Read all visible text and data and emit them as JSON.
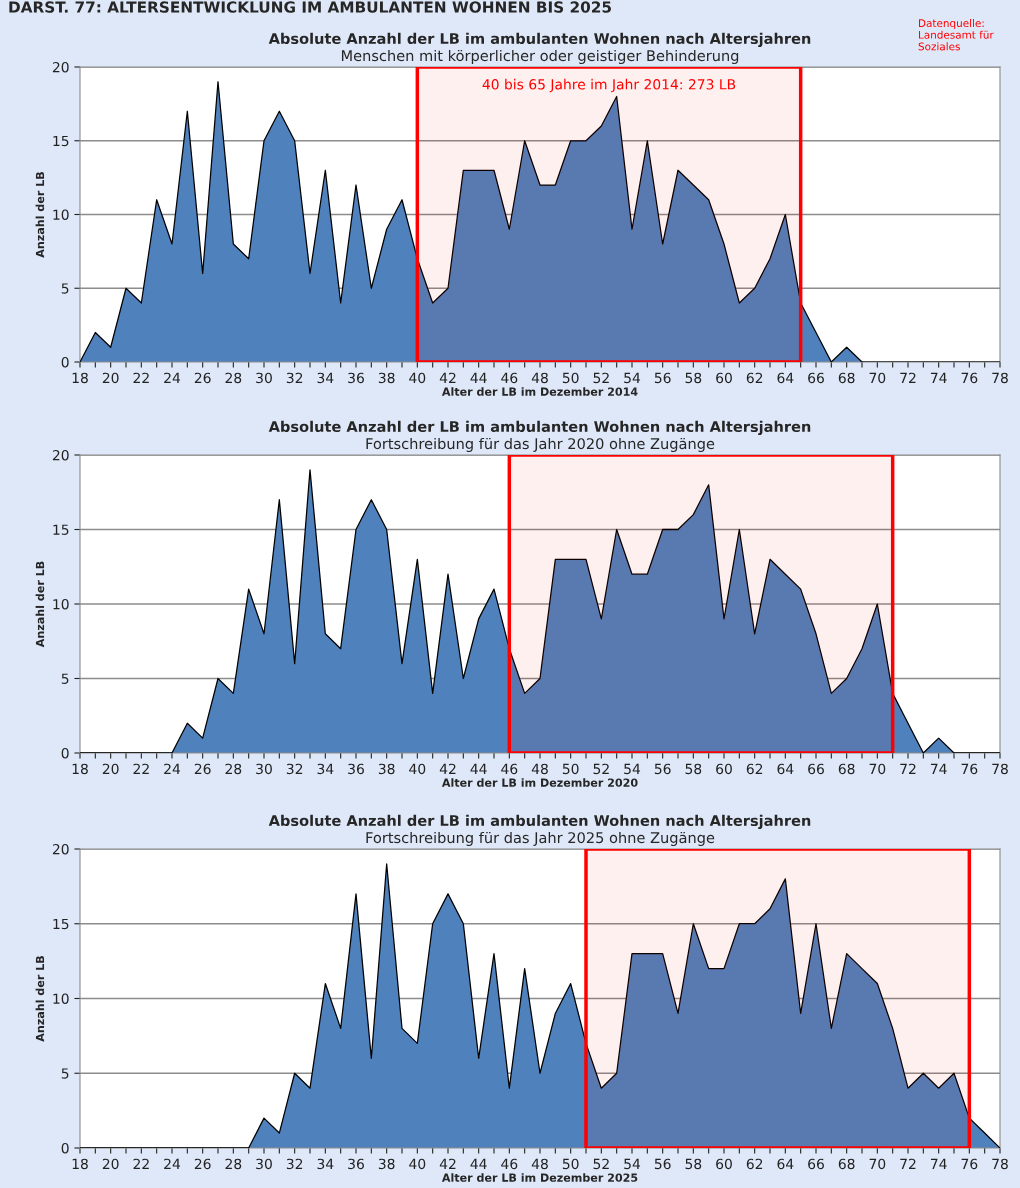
{
  "chart_data": [
    {
      "type": "area",
      "title": "Absolute Anzahl der LB im ambulanten Wohnen nach Altersjahren",
      "subtitle": "Menschen mit körperlicher oder geistiger Behinderung",
      "xlabel": "Alter der LB im Dezember 2014",
      "ylabel": "Anzahl der LB",
      "annotations": [
        "DARST. 77: ALTERSENTWICKLUNG IM AMBULANTEN WOHNEN BIS 2025",
        "Datenquelle: Landesamt für Soziales"
      ],
      "x": [
        18,
        19,
        20,
        21,
        22,
        23,
        24,
        25,
        26,
        27,
        28,
        29,
        30,
        31,
        32,
        33,
        34,
        35,
        36,
        37,
        38,
        39,
        40,
        41,
        42,
        43,
        44,
        45,
        46,
        47,
        48,
        49,
        50,
        51,
        52,
        53,
        54,
        55,
        56,
        57,
        58,
        59,
        60,
        61,
        62,
        63,
        64,
        65,
        66,
        67,
        68,
        69,
        70,
        71,
        72,
        73,
        74,
        75,
        76,
        77,
        78
      ],
      "series": [
        {
          "color": "#4f81bd",
          "values": [
            0,
            2,
            1,
            5,
            4,
            11,
            8,
            17,
            6,
            19,
            8,
            7,
            15,
            17,
            15,
            6,
            13,
            4,
            12,
            5,
            9,
            11,
            7,
            4,
            5,
            13,
            13,
            13,
            9,
            15,
            12,
            12,
            15,
            15,
            16,
            18,
            9,
            15,
            8,
            13,
            12,
            11,
            8,
            4,
            5,
            7,
            10,
            4,
            2,
            0,
            1,
            0,
            0,
            0,
            0,
            0,
            0,
            0,
            0,
            0,
            0
          ]
        }
      ],
      "bands": [
        {
          "axis": "x",
          "from": 40,
          "to": 65,
          "label": "40 bis 65 Jahre im Jahr 2014: 273 LB",
          "color": "#ff0000"
        }
      ],
      "xlim": [
        18,
        78
      ],
      "ylim": [
        0,
        20
      ],
      "yticks": [
        0,
        5,
        10,
        15,
        20
      ],
      "xticks": [
        18,
        {
          "value": 19,
          "label": null
        },
        20,
        {
          "value": 21,
          "label": null
        },
        22,
        {
          "value": 23,
          "label": null
        },
        24,
        {
          "value": 25,
          "label": null
        },
        26,
        {
          "value": 27,
          "label": null
        },
        28,
        {
          "value": 29,
          "label": null
        },
        30,
        {
          "value": 31,
          "label": null
        },
        32,
        {
          "value": 33,
          "label": null
        },
        34,
        {
          "value": 35,
          "label": null
        },
        36,
        {
          "value": 37,
          "label": null
        },
        38,
        {
          "value": 39,
          "label": null
        },
        40,
        {
          "value": 41,
          "label": null
        },
        42,
        {
          "value": 43,
          "label": null
        },
        44,
        {
          "value": 45,
          "label": null
        },
        46,
        {
          "value": 47,
          "label": null
        },
        48,
        {
          "value": 49,
          "label": null
        },
        50,
        {
          "value": 51,
          "label": null
        },
        52,
        {
          "value": 53,
          "label": null
        },
        54,
        {
          "value": 55,
          "label": null
        },
        56,
        {
          "value": 57,
          "label": null
        },
        58,
        {
          "value": 59,
          "label": null
        },
        60,
        {
          "value": 61,
          "label": null
        },
        62,
        {
          "value": 63,
          "label": null
        },
        64,
        {
          "value": 65,
          "label": null
        },
        66,
        {
          "value": 67,
          "label": null
        },
        68,
        {
          "value": 69,
          "label": null
        },
        70,
        {
          "value": 71,
          "label": null
        },
        72,
        {
          "value": 73,
          "label": null
        },
        74,
        {
          "value": 75,
          "label": null
        },
        76,
        {
          "value": 77,
          "label": null
        },
        78
      ],
      "grid": "y",
      "legend": false
    },
    {
      "type": "area",
      "title": "Absolute Anzahl der LB im ambulanten Wohnen nach Altersjahren",
      "subtitle": "Fortschreibung für das Jahr 2020 ohne Zugänge",
      "xlabel": "Alter der LB im Dezember 2020",
      "ylabel": "Anzahl der LB",
      "x": [
        18,
        19,
        20,
        21,
        22,
        23,
        24,
        25,
        26,
        27,
        28,
        29,
        30,
        31,
        32,
        33,
        34,
        35,
        36,
        37,
        38,
        39,
        40,
        41,
        42,
        43,
        44,
        45,
        46,
        47,
        48,
        49,
        50,
        51,
        52,
        53,
        54,
        55,
        56,
        57,
        58,
        59,
        60,
        61,
        62,
        63,
        64,
        65,
        66,
        67,
        68,
        69,
        70,
        71,
        72,
        73,
        74,
        75,
        76,
        77,
        78
      ],
      "series": [
        {
          "color": "#4f81bd",
          "values": [
            0,
            0,
            0,
            0,
            0,
            0,
            0,
            2,
            1,
            5,
            4,
            11,
            8,
            17,
            6,
            19,
            8,
            7,
            15,
            17,
            15,
            6,
            13,
            4,
            12,
            5,
            9,
            11,
            7,
            4,
            5,
            13,
            13,
            13,
            9,
            15,
            12,
            12,
            15,
            15,
            16,
            18,
            9,
            15,
            8,
            13,
            12,
            11,
            8,
            4,
            5,
            7,
            10,
            4,
            2,
            0,
            1,
            0,
            0,
            0,
            0
          ]
        }
      ],
      "bands": [
        {
          "axis": "x",
          "from": 46,
          "to": 71,
          "color": "#ff0000"
        }
      ],
      "xlim": [
        18,
        78
      ],
      "ylim": [
        0,
        20
      ],
      "yticks": [
        0,
        5,
        10,
        15,
        20
      ],
      "xticks": [
        18,
        {
          "value": 19,
          "label": null
        },
        20,
        {
          "value": 21,
          "label": null
        },
        22,
        {
          "value": 23,
          "label": null
        },
        24,
        {
          "value": 25,
          "label": null
        },
        26,
        {
          "value": 27,
          "label": null
        },
        28,
        {
          "value": 29,
          "label": null
        },
        30,
        {
          "value": 31,
          "label": null
        },
        32,
        {
          "value": 33,
          "label": null
        },
        34,
        {
          "value": 35,
          "label": null
        },
        36,
        {
          "value": 37,
          "label": null
        },
        38,
        {
          "value": 39,
          "label": null
        },
        40,
        {
          "value": 41,
          "label": null
        },
        42,
        {
          "value": 43,
          "label": null
        },
        44,
        {
          "value": 45,
          "label": null
        },
        46,
        {
          "value": 47,
          "label": null
        },
        48,
        {
          "value": 49,
          "label": null
        },
        50,
        {
          "value": 51,
          "label": null
        },
        52,
        {
          "value": 53,
          "label": null
        },
        54,
        {
          "value": 55,
          "label": null
        },
        56,
        {
          "value": 57,
          "label": null
        },
        58,
        {
          "value": 59,
          "label": null
        },
        60,
        {
          "value": 61,
          "label": null
        },
        62,
        {
          "value": 63,
          "label": null
        },
        64,
        {
          "value": 65,
          "label": null
        },
        66,
        {
          "value": 67,
          "label": null
        },
        68,
        {
          "value": 69,
          "label": null
        },
        70,
        {
          "value": 71,
          "label": null
        },
        72,
        {
          "value": 73,
          "label": null
        },
        74,
        {
          "value": 75,
          "label": null
        },
        76,
        {
          "value": 77,
          "label": null
        },
        78
      ],
      "grid": "y",
      "legend": false
    },
    {
      "type": "area",
      "title": "Absolute Anzahl der LB im ambulanten Wohnen nach Altersjahren",
      "subtitle": "Fortschreibung für das Jahr 2025 ohne Zugänge",
      "xlabel": "Alter der LB im Dezember 2025",
      "ylabel": "Anzahl der LB",
      "x": [
        18,
        19,
        20,
        21,
        22,
        23,
        24,
        25,
        26,
        27,
        28,
        29,
        30,
        31,
        32,
        33,
        34,
        35,
        36,
        37,
        38,
        39,
        40,
        41,
        42,
        43,
        44,
        45,
        46,
        47,
        48,
        49,
        50,
        51,
        52,
        53,
        54,
        55,
        56,
        57,
        58,
        59,
        60,
        61,
        62,
        63,
        64,
        65,
        66,
        67,
        68,
        69,
        70,
        71,
        72,
        73,
        74,
        75,
        76,
        77,
        78
      ],
      "series": [
        {
          "color": "#4f81bd",
          "values": [
            0,
            0,
            0,
            0,
            0,
            0,
            0,
            0,
            0,
            0,
            0,
            0,
            2,
            1,
            5,
            4,
            11,
            8,
            17,
            6,
            19,
            8,
            7,
            15,
            17,
            15,
            6,
            13,
            4,
            12,
            5,
            9,
            11,
            7,
            4,
            5,
            13,
            13,
            13,
            9,
            15,
            12,
            12,
            15,
            15,
            16,
            18,
            9,
            15,
            8,
            13,
            12,
            11,
            8,
            4,
            5,
            4,
            5,
            2,
            1,
            0
          ]
        }
      ],
      "bands": [
        {
          "axis": "x",
          "from": 51,
          "to": 76,
          "color": "#ff0000"
        }
      ],
      "xlim": [
        18,
        78
      ],
      "ylim": [
        0,
        20
      ],
      "yticks": [
        0,
        5,
        10,
        15,
        20
      ],
      "xticks": [
        18,
        {
          "value": 19,
          "label": null
        },
        20,
        {
          "value": 21,
          "label": null
        },
        22,
        {
          "value": 23,
          "label": null
        },
        24,
        {
          "value": 25,
          "label": null
        },
        26,
        {
          "value": 27,
          "label": null
        },
        28,
        {
          "value": 29,
          "label": null
        },
        30,
        {
          "value": 31,
          "label": null
        },
        32,
        {
          "value": 33,
          "label": null
        },
        34,
        {
          "value": 35,
          "label": null
        },
        36,
        {
          "value": 37,
          "label": null
        },
        38,
        {
          "value": 39,
          "label": null
        },
        40,
        {
          "value": 41,
          "label": null
        },
        42,
        {
          "value": 43,
          "label": null
        },
        44,
        {
          "value": 45,
          "label": null
        },
        46,
        {
          "value": 47,
          "label": null
        },
        48,
        {
          "value": 49,
          "label": null
        },
        50,
        {
          "value": 51,
          "label": null
        },
        52,
        {
          "value": 53,
          "label": null
        },
        54,
        {
          "value": 55,
          "label": null
        },
        56,
        {
          "value": 57,
          "label": null
        },
        58,
        {
          "value": 59,
          "label": null
        },
        60,
        {
          "value": 61,
          "label": null
        },
        62,
        {
          "value": 63,
          "label": null
        },
        64,
        {
          "value": 65,
          "label": null
        },
        66,
        {
          "value": 67,
          "label": null
        },
        68,
        {
          "value": 69,
          "label": null
        },
        70,
        {
          "value": 71,
          "label": null
        },
        72,
        {
          "value": 73,
          "label": null
        },
        74,
        {
          "value": 75,
          "label": null
        },
        76,
        {
          "value": 77,
          "label": null
        },
        78
      ],
      "grid": "y",
      "legend": false
    }
  ]
}
